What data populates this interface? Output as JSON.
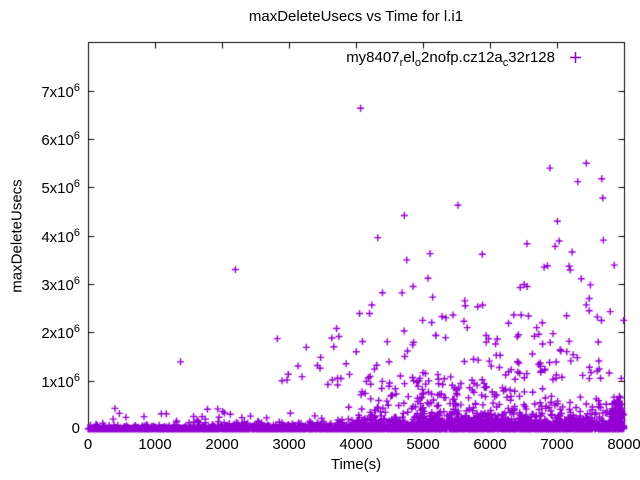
{
  "figure": {
    "background": "#ffffff",
    "border_color": "#000000"
  },
  "chart_data": {
    "type": "scatter",
    "title": "maxDeleteUsecs vs Time for l.i1",
    "xlabel": "Time(s)",
    "ylabel": "maxDeleteUsecs",
    "xlim": [
      0,
      8000
    ],
    "ylim": [
      0,
      8010000
    ],
    "grid": false,
    "tick_style": "inside-mirrored",
    "x_ticks": {
      "values": [
        0,
        1000,
        2000,
        3000,
        4000,
        5000,
        6000,
        7000,
        8000
      ],
      "labels": [
        "0",
        "1000",
        "2000",
        "3000",
        "4000",
        "5000",
        "6000",
        "7000",
        "8000"
      ]
    },
    "y_ticks": {
      "values": [
        0,
        1000000,
        2000000,
        3000000,
        4000000,
        5000000,
        6000000,
        7000000
      ],
      "labels": [
        "0",
        "1x10^6",
        "2x10^6",
        "3x10^6",
        "4x10^6",
        "5x10^6",
        "6x10^6",
        "7x10^6"
      ]
    },
    "legend": {
      "position": "top-right-inside",
      "marker": "plus",
      "marker_color": "#9400d3",
      "label_plain": "my8407_rel_o2nofp.cz12a_c32r128",
      "label_segments": [
        {
          "text": "my8407"
        },
        {
          "text": "r",
          "sub": true
        },
        {
          "text": "el"
        },
        {
          "text": "o",
          "sub": true
        },
        {
          "text": "2nofp.cz12a"
        },
        {
          "text": "c",
          "sub": true
        },
        {
          "text": "32r128"
        }
      ]
    },
    "series": [
      {
        "name": "my8407_rel_o2nofp.cz12a_c32r128",
        "color": "#9400d3",
        "marker": "plus",
        "marker_size": 7,
        "summary": "Very dense band of points hugging y=0 across the whole 0-8000s range; scatter density and magnitude grow with time, with a dense hill up to ~1x10^6 around t=5000-6000 and sparse spikes up to 6.6x10^6 mostly for t>2800.",
        "outlier_points": [
          [
            4068,
            6640000
          ],
          [
            7437,
            5500000
          ],
          [
            6893,
            5400000
          ],
          [
            7310,
            5120000
          ],
          [
            7668,
            5180000
          ],
          [
            7683,
            4780000
          ],
          [
            5522,
            4630000
          ],
          [
            4722,
            4420000
          ],
          [
            7006,
            4300000
          ],
          [
            4325,
            3960000
          ],
          [
            7692,
            3910000
          ],
          [
            7032,
            3890000
          ],
          [
            6972,
            3780000
          ],
          [
            5105,
            3630000
          ],
          [
            4757,
            3500000
          ],
          [
            6858,
            3380000
          ],
          [
            7181,
            3370000
          ],
          [
            6808,
            3350000
          ],
          [
            7196,
            3290000
          ],
          [
            2200,
            3300000
          ],
          [
            5075,
            3120000
          ],
          [
            6510,
            2990000
          ],
          [
            6555,
            2950000
          ],
          [
            4852,
            2950000
          ],
          [
            6451,
            2930000
          ],
          [
            4395,
            2820000
          ],
          [
            5144,
            2730000
          ],
          [
            7481,
            2700000
          ],
          [
            7437,
            2570000
          ],
          [
            5631,
            2550000
          ],
          [
            5815,
            2530000
          ],
          [
            4053,
            2390000
          ],
          [
            4202,
            2390000
          ],
          [
            5448,
            2360000
          ],
          [
            6356,
            2360000
          ],
          [
            6465,
            2360000
          ],
          [
            6574,
            2340000
          ],
          [
            5284,
            2330000
          ],
          [
            7601,
            2320000
          ],
          [
            5343,
            2300000
          ],
          [
            6782,
            2200000
          ],
          [
            5611,
            2230000
          ],
          [
            3710,
            2080000
          ],
          [
            5190,
            1940000
          ],
          [
            6425,
            1950000
          ],
          [
            5979,
            1870000
          ],
          [
            2826,
            1870000
          ],
          [
            6663,
            1920000
          ],
          [
            6083,
            1760000
          ],
          [
            7616,
            1800000
          ],
          [
            3259,
            1690000
          ],
          [
            4727,
            1500000
          ],
          [
            7206,
            1410000
          ],
          [
            1381,
            1390000
          ],
          [
            4310,
            1320000
          ],
          [
            4276,
            1240000
          ],
          [
            7601,
            1200000
          ],
          [
            3903,
            1130000
          ],
          [
            2896,
            1000000
          ],
          [
            3580,
            920000
          ]
        ],
        "dense_distribution": {
          "seed": 1337,
          "floor": {
            "count": 2400,
            "base": 30000,
            "slope": 80000,
            "y_pow": 2.5
          },
          "band": {
            "count": 1500,
            "x_pow": 0.72,
            "scale_base": 18000,
            "scale_grow": 170000,
            "clip": 1250000
          },
          "hill": {
            "count": 240,
            "x_mean": 5350,
            "x_sd": 800,
            "x_min": 2700,
            "x_max": 7950,
            "y_min": 120000,
            "y_max": 1050000,
            "y_pow": 1.6
          },
          "high": {
            "count": 105,
            "x_base": 2500,
            "x_span": 5500,
            "x_pow": 0.55,
            "y_base": 1000000,
            "y_scale": 700000,
            "y_clip": 4700000
          },
          "left_sparse": {
            "count": 55,
            "x_max": 2700,
            "y_base": 50000,
            "y_span": 420000,
            "y_pow": 2.2
          },
          "edge_cluster": {
            "count": 90,
            "x_min": 7820,
            "x_max": 7980,
            "y_pow": 1.6,
            "y_max": 680000
          }
        }
      }
    ]
  }
}
